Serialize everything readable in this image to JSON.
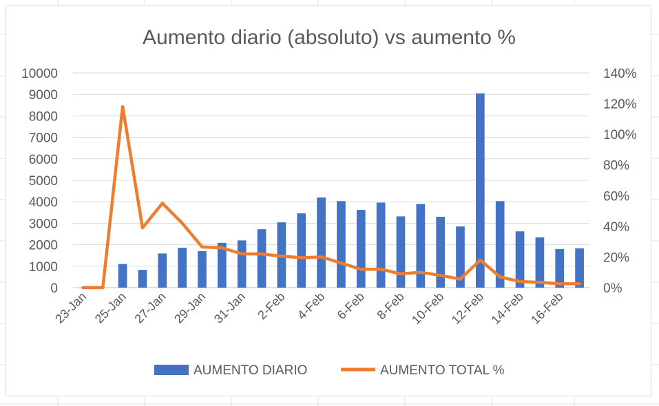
{
  "chart_data": {
    "type": "bar",
    "title": "Aumento diario (absoluto) vs aumento %",
    "categories": [
      "23-Jan",
      "24-Jan",
      "25-Jan",
      "26-Jan",
      "27-Jan",
      "28-Jan",
      "29-Jan",
      "30-Jan",
      "31-Jan",
      "1-Feb",
      "2-Feb",
      "3-Feb",
      "4-Feb",
      "5-Feb",
      "6-Feb",
      "7-Feb",
      "8-Feb",
      "9-Feb",
      "10-Feb",
      "11-Feb",
      "12-Feb",
      "13-Feb",
      "14-Feb",
      "15-Feb",
      "16-Feb",
      "17-Feb"
    ],
    "x_tick_labels": [
      "23-Jan",
      "25-Jan",
      "27-Jan",
      "29-Jan",
      "31-Jan",
      "2-Feb",
      "4-Feb",
      "6-Feb",
      "8-Feb",
      "10-Feb",
      "12-Feb",
      "14-Feb",
      "16-Feb"
    ],
    "series": [
      {
        "name": "AUMENTO DIARIO",
        "type": "bar",
        "axis": "left",
        "color": "#4472c4",
        "values": [
          0,
          0,
          1100,
          830,
          1590,
          1860,
          1700,
          2090,
          2200,
          2720,
          3040,
          3460,
          4200,
          4030,
          3620,
          3960,
          3320,
          3900,
          3300,
          2850,
          9050,
          4030,
          2620,
          2340,
          1800,
          1830
        ]
      },
      {
        "name": "AUMENTO TOTAL %",
        "type": "line",
        "axis": "right",
        "color": "#ed7d31",
        "values": [
          0,
          0,
          118,
          39,
          55,
          42,
          26.5,
          26,
          22,
          22,
          20.5,
          19.5,
          20,
          16,
          12,
          12,
          9,
          10,
          8,
          5.5,
          18,
          7,
          4,
          3.5,
          2.5,
          2.5
        ]
      }
    ],
    "ylim_left": [
      0,
      10000
    ],
    "ytick_step_left": 1000,
    "ylim_right": [
      0,
      140
    ],
    "ytick_step_right": 20,
    "right_axis_unit": "%",
    "grid": true,
    "legend_position": "bottom"
  }
}
